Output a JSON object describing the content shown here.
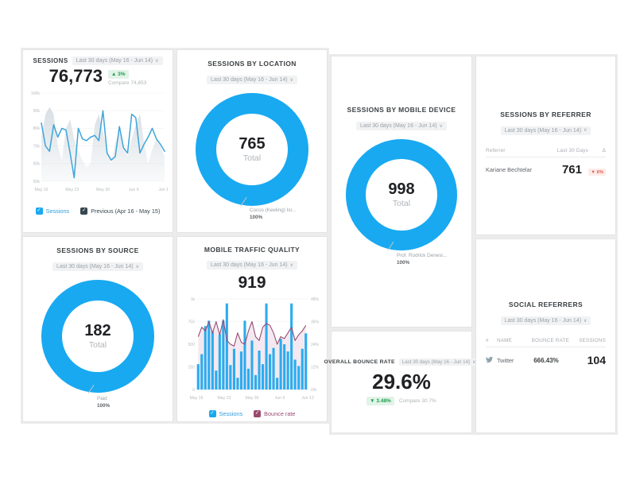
{
  "colors": {
    "accent_blue": "#18a9f1",
    "line_blue": "#3ea5d9",
    "bar_blue": "#2bacee",
    "prev_gray": "#d7dde2",
    "maroon": "#9a4b70",
    "maroon_fill": "#f0e2ec",
    "dark_check": "#37474f",
    "green": "#1e9e53",
    "green_bg": "#e2f3e8",
    "red": "#e05a50",
    "red_bg": "#fcebe9"
  },
  "cards": {
    "sessions": {
      "title": "SESSIONS",
      "date_range": "Last 30 days (May 16 - Jun 14)",
      "value": "76,773",
      "delta": "▲ 3%",
      "compare": "Compare 74,853",
      "legend": [
        {
          "label": "Sessions"
        },
        {
          "label": "Previous (Apr 16 - May 15)"
        }
      ]
    },
    "location": {
      "title": "SESSIONS BY LOCATION",
      "date_range": "Last 30 days (May 16 - Jun 14)",
      "total_value": "765",
      "total_label": "Total",
      "callout_name": "Cocos (Keeling) Isl...",
      "callout_pct": "100%"
    },
    "source": {
      "title": "SESSIONS BY SOURCE",
      "date_range": "Last 30 days (May 16 - Jun 14)",
      "total_value": "182",
      "total_label": "Total",
      "callout_name": "Paid",
      "callout_pct": "100%"
    },
    "mobile_device": {
      "title": "SESSIONS BY MOBILE DEVICE",
      "date_range": "Last 30 days (May 16 - Jun 14)",
      "total_value": "998",
      "total_label": "Total",
      "callout_name": "Prof. Rodrick Denesi...",
      "callout_pct": "100%"
    },
    "mobile_quality": {
      "title": "MOBILE TRAFFIC QUALITY",
      "date_range": "Last 30 days (May 16 - Jun 14)",
      "value": "919",
      "legend": [
        {
          "label": "Sessions"
        },
        {
          "label": "Bounce rate"
        }
      ]
    },
    "bounce": {
      "title": "OVERALL BOUNCE RATE",
      "date_range": "Last 30 days (May 16 - Jun 14)",
      "value": "29.6%",
      "delta": "▼ 3.48%",
      "compare": "Compare 30.7%"
    },
    "referrer": {
      "title": "SESSIONS BY REFERRER",
      "date_range": "Last 30 days (May 16 - Jun 14)",
      "col_referrer": "Referrer",
      "col_value": "Last 30 Days",
      "col_delta": "Δ",
      "row": {
        "name": "Kariane Bechtelar",
        "value": "761",
        "delta": "▼ 6%"
      }
    },
    "social": {
      "title": "SOCIAL REFERRERS",
      "date_range": "Last 30 days (May 16 - Jun 14)",
      "col_num": "#",
      "col_name": "NAME",
      "col_bounce": "BOUNCE RATE",
      "col_sessions": "SESSIONS",
      "row": {
        "name": "Twitter",
        "bounce": "666.43%",
        "sessions": "104"
      }
    }
  },
  "chart_data": [
    {
      "id": "sessions_trend",
      "type": "line",
      "title": "Sessions - Last 30 days vs Previous (Apr 16 - May 15)",
      "x_labels": [
        "May 16",
        "May 23",
        "May 30",
        "Jun 6",
        "Jun 13"
      ],
      "y_ticks": [
        "100k",
        "90k",
        "80k",
        "70k",
        "60k",
        "50k"
      ],
      "ylim": [
        50,
        100
      ],
      "y_unit": "thousand sessions",
      "grid": true,
      "legend_position": "bottom",
      "series": [
        {
          "name": "Sessions",
          "type": "line",
          "values": [
            83,
            70,
            67,
            82,
            75,
            80,
            79,
            66,
            52,
            80,
            74,
            73,
            75,
            76,
            73,
            90,
            66,
            62,
            64,
            81,
            69,
            66,
            88,
            86,
            66,
            71,
            75,
            80,
            74,
            71,
            67
          ]
        },
        {
          "name": "Previous (Apr 16 - May 15)",
          "type": "area",
          "values": [
            75,
            88,
            92,
            88,
            70,
            62,
            80,
            85,
            74,
            67,
            62,
            58,
            60,
            82,
            88,
            78,
            68,
            60,
            72,
            78,
            70,
            64,
            74,
            82,
            88,
            72,
            60,
            68,
            74,
            70,
            64
          ]
        }
      ]
    },
    {
      "id": "location_donut",
      "type": "pie",
      "title": "Sessions by location",
      "total": 765,
      "slices": [
        {
          "label": "Cocos (Keeling) Isl...",
          "pct": 100
        }
      ]
    },
    {
      "id": "source_donut",
      "type": "pie",
      "title": "Sessions by source",
      "total": 182,
      "slices": [
        {
          "label": "Paid",
          "pct": 100
        }
      ]
    },
    {
      "id": "device_donut",
      "type": "pie",
      "title": "Sessions by mobile device",
      "total": 998,
      "slices": [
        {
          "label": "Prof. Rodrick Denesi...",
          "pct": 100
        }
      ]
    },
    {
      "id": "mobile_quality",
      "type": "bar",
      "title": "Mobile traffic quality",
      "x_labels": [
        "May 16",
        "May 23",
        "May 30",
        "Jun 6",
        "Jun 13"
      ],
      "y_ticks_left": [
        "1k",
        "750",
        "500",
        "250",
        "0"
      ],
      "ylim_left": [
        0,
        1000
      ],
      "y_ticks_right": [
        "48%",
        "36%",
        "24%",
        "12%",
        "0%"
      ],
      "ylim_right": [
        0,
        48
      ],
      "grid": true,
      "legend_position": "bottom",
      "series": [
        {
          "name": "Sessions",
          "type": "bar",
          "values": [
            280,
            390,
            700,
            760,
            640,
            210,
            610,
            760,
            950,
            270,
            450,
            130,
            420,
            760,
            230,
            540,
            160,
            430,
            280,
            950,
            390,
            460,
            130,
            560,
            500,
            420,
            950,
            330,
            260,
            450,
            620
          ]
        },
        {
          "name": "Bounce rate",
          "type": "line",
          "values": [
            28,
            33,
            31,
            36,
            30,
            36,
            29,
            37,
            26,
            24,
            23,
            30,
            25,
            24,
            31,
            36,
            28,
            26,
            33,
            35,
            34,
            30,
            24,
            28,
            27,
            30,
            33,
            26,
            29,
            31,
            34
          ]
        }
      ]
    }
  ]
}
